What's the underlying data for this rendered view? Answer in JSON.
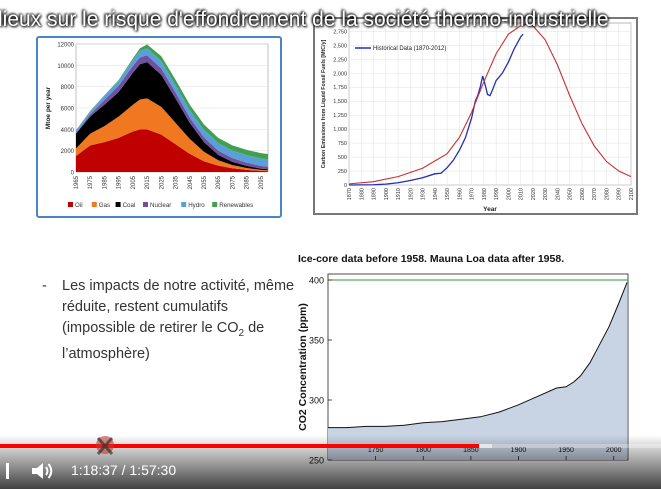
{
  "slide": {
    "title": "lieux sur le risque d'effondrement de la société thermo-industrielle",
    "bullet_text": "Les impacts de notre activité, même réduite, restent cumulatifs (impossible de retirer le CO",
    "bullet_sub": "2",
    "bullet_tail": " de l’atmosphère)",
    "bullet_dash": "-"
  },
  "player": {
    "time_current": "1:18:37",
    "time_separator": "/",
    "time_total": "1:57:30",
    "progress": 0.725,
    "buffered": 0.745,
    "colors": {
      "played": "#ff0000"
    }
  },
  "chart_data": [
    {
      "type": "area",
      "ylabel": "Mtoe per year",
      "ylim": [
        0,
        12000
      ],
      "yticks": [
        "0",
        "2000",
        "4000",
        "6000",
        "8000",
        "10000",
        "12000"
      ],
      "xticks": [
        "1965",
        "1975",
        "1985",
        "1995",
        "2005",
        "2015",
        "2025",
        "2035",
        "2045",
        "2055",
        "2065",
        "2075",
        "2085",
        "2095"
      ],
      "x": [
        1965,
        1975,
        1985,
        1995,
        2005,
        2010,
        2015,
        2025,
        2035,
        2045,
        2055,
        2065,
        2075,
        2085,
        2095,
        2100
      ],
      "series": [
        {
          "name": "Oil",
          "color": "#c00000",
          "values": [
            1500,
            2500,
            2800,
            3200,
            3800,
            4000,
            4000,
            3500,
            2600,
            1700,
            1000,
            600,
            350,
            200,
            100,
            80
          ]
        },
        {
          "name": "Gas",
          "color": "#f07820",
          "values": [
            700,
            1100,
            1500,
            2000,
            2500,
            2800,
            2900,
            2600,
            2000,
            1400,
            900,
            500,
            300,
            180,
            100,
            80
          ]
        },
        {
          "name": "Coal",
          "color": "#000000",
          "values": [
            1400,
            1600,
            2000,
            2300,
            3000,
            3300,
            3400,
            3000,
            2300,
            1500,
            900,
            500,
            300,
            200,
            120,
            100
          ]
        },
        {
          "name": "Nuclear",
          "color": "#7050a0",
          "values": [
            50,
            200,
            450,
            600,
            650,
            650,
            650,
            600,
            550,
            500,
            450,
            400,
            350,
            300,
            250,
            230
          ]
        },
        {
          "name": "Hydro",
          "color": "#5aa0d8",
          "values": [
            250,
            300,
            400,
            450,
            550,
            600,
            650,
            700,
            700,
            700,
            700,
            700,
            700,
            700,
            700,
            700
          ]
        },
        {
          "name": "Renewables",
          "color": "#40a050",
          "values": [
            20,
            30,
            50,
            80,
            150,
            250,
            350,
            450,
            500,
            500,
            500,
            500,
            500,
            500,
            500,
            500
          ]
        }
      ]
    },
    {
      "type": "line",
      "ylabel": "Carbon Emissions from Liquid Fossil Fuels [MtC/y]",
      "xlabel": "Year",
      "ylim": [
        0,
        2900
      ],
      "yticks": [
        "0",
        "250",
        "500",
        "750",
        "1,000",
        "1,250",
        "1,500",
        "1,750",
        "2,000",
        "2,250",
        "2,500",
        "2,750"
      ],
      "xticks": [
        "1870",
        "1880",
        "1890",
        "1900",
        "1910",
        "1920",
        "1930",
        "1940",
        "1950",
        "1960",
        "1970",
        "1980",
        "1990",
        "2000",
        "2010",
        "2020",
        "2030",
        "2040",
        "2050",
        "2060",
        "2070",
        "2080",
        "2090",
        "2100"
      ],
      "legend": "Historical Data (1870-2012)",
      "series": [
        {
          "name": "Historical Data (1870-2012)",
          "color": "#2030b0",
          "x": [
            1870,
            1880,
            1890,
            1900,
            1910,
            1920,
            1930,
            1940,
            1945,
            1950,
            1955,
            1960,
            1965,
            1970,
            1973,
            1975,
            1977,
            1979,
            1981,
            1983,
            1985,
            1987,
            1990,
            1995,
            2000,
            2005,
            2010,
            2012
          ],
          "y": [
            0,
            2,
            5,
            15,
            40,
            80,
            130,
            200,
            210,
            310,
            440,
            620,
            850,
            1200,
            1500,
            1600,
            1750,
            1950,
            1800,
            1620,
            1600,
            1700,
            1870,
            2000,
            2200,
            2450,
            2650,
            2700
          ]
        },
        {
          "color": "#c83030",
          "x": [
            1870,
            1890,
            1910,
            1930,
            1950,
            1960,
            1970,
            1980,
            1990,
            2000,
            2010,
            2015,
            2020,
            2030,
            2040,
            2050,
            2060,
            2070,
            2080,
            2090,
            2100
          ],
          "y": [
            20,
            60,
            150,
            300,
            560,
            850,
            1300,
            1850,
            2350,
            2700,
            2850,
            2880,
            2850,
            2600,
            2150,
            1600,
            1100,
            700,
            420,
            250,
            150
          ]
        }
      ]
    },
    {
      "type": "line",
      "title": "Ice-core data before 1958. Mauna Loa data after 1958.",
      "ylabel": "CO2 Concentration (ppm)",
      "ylim": [
        250,
        405
      ],
      "yticks": [
        "250",
        "300",
        "350",
        "400"
      ],
      "xlim": [
        1700,
        2015
      ],
      "xticks": [
        "1750",
        "1800",
        "1850",
        "1900",
        "1950",
        "2000"
      ],
      "reference_line": 400,
      "series": [
        {
          "x": [
            1700,
            1720,
            1740,
            1760,
            1780,
            1800,
            1820,
            1840,
            1860,
            1880,
            1900,
            1920,
            1940,
            1950,
            1958,
            1965,
            1975,
            1985,
            1995,
            2005,
            2014
          ],
          "y": [
            277,
            277,
            278,
            278,
            279,
            281,
            282,
            284,
            286,
            290,
            296,
            303,
            310,
            311,
            315,
            320,
            331,
            346,
            361,
            380,
            398
          ]
        }
      ]
    }
  ]
}
